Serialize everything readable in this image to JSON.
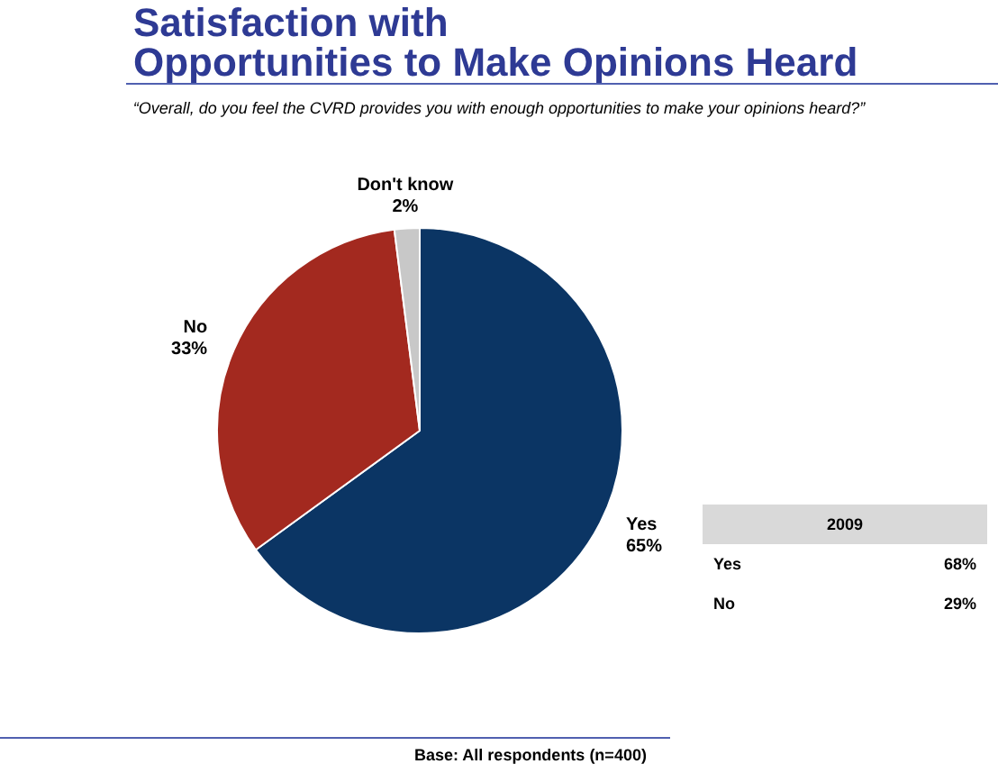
{
  "chart_data": {
    "type": "pie",
    "title": "Satisfaction with\nOpportunities to Make Opinions Heard",
    "subtitle": "“Overall, do you feel the CVRD provides you with enough opportunities to make your opinions heard?”",
    "categories": [
      "Yes",
      "No",
      "Don't know"
    ],
    "values": [
      65,
      33,
      2
    ],
    "colors": [
      "#0b3564",
      "#a3291f",
      "#c8c8c8"
    ],
    "value_labels": [
      "65%",
      "33%",
      "2%"
    ],
    "legend": false,
    "annotations": [
      "2009",
      "Yes",
      "68%",
      "No",
      "29%",
      "Base: All respondents (n=400)"
    ]
  }
}
